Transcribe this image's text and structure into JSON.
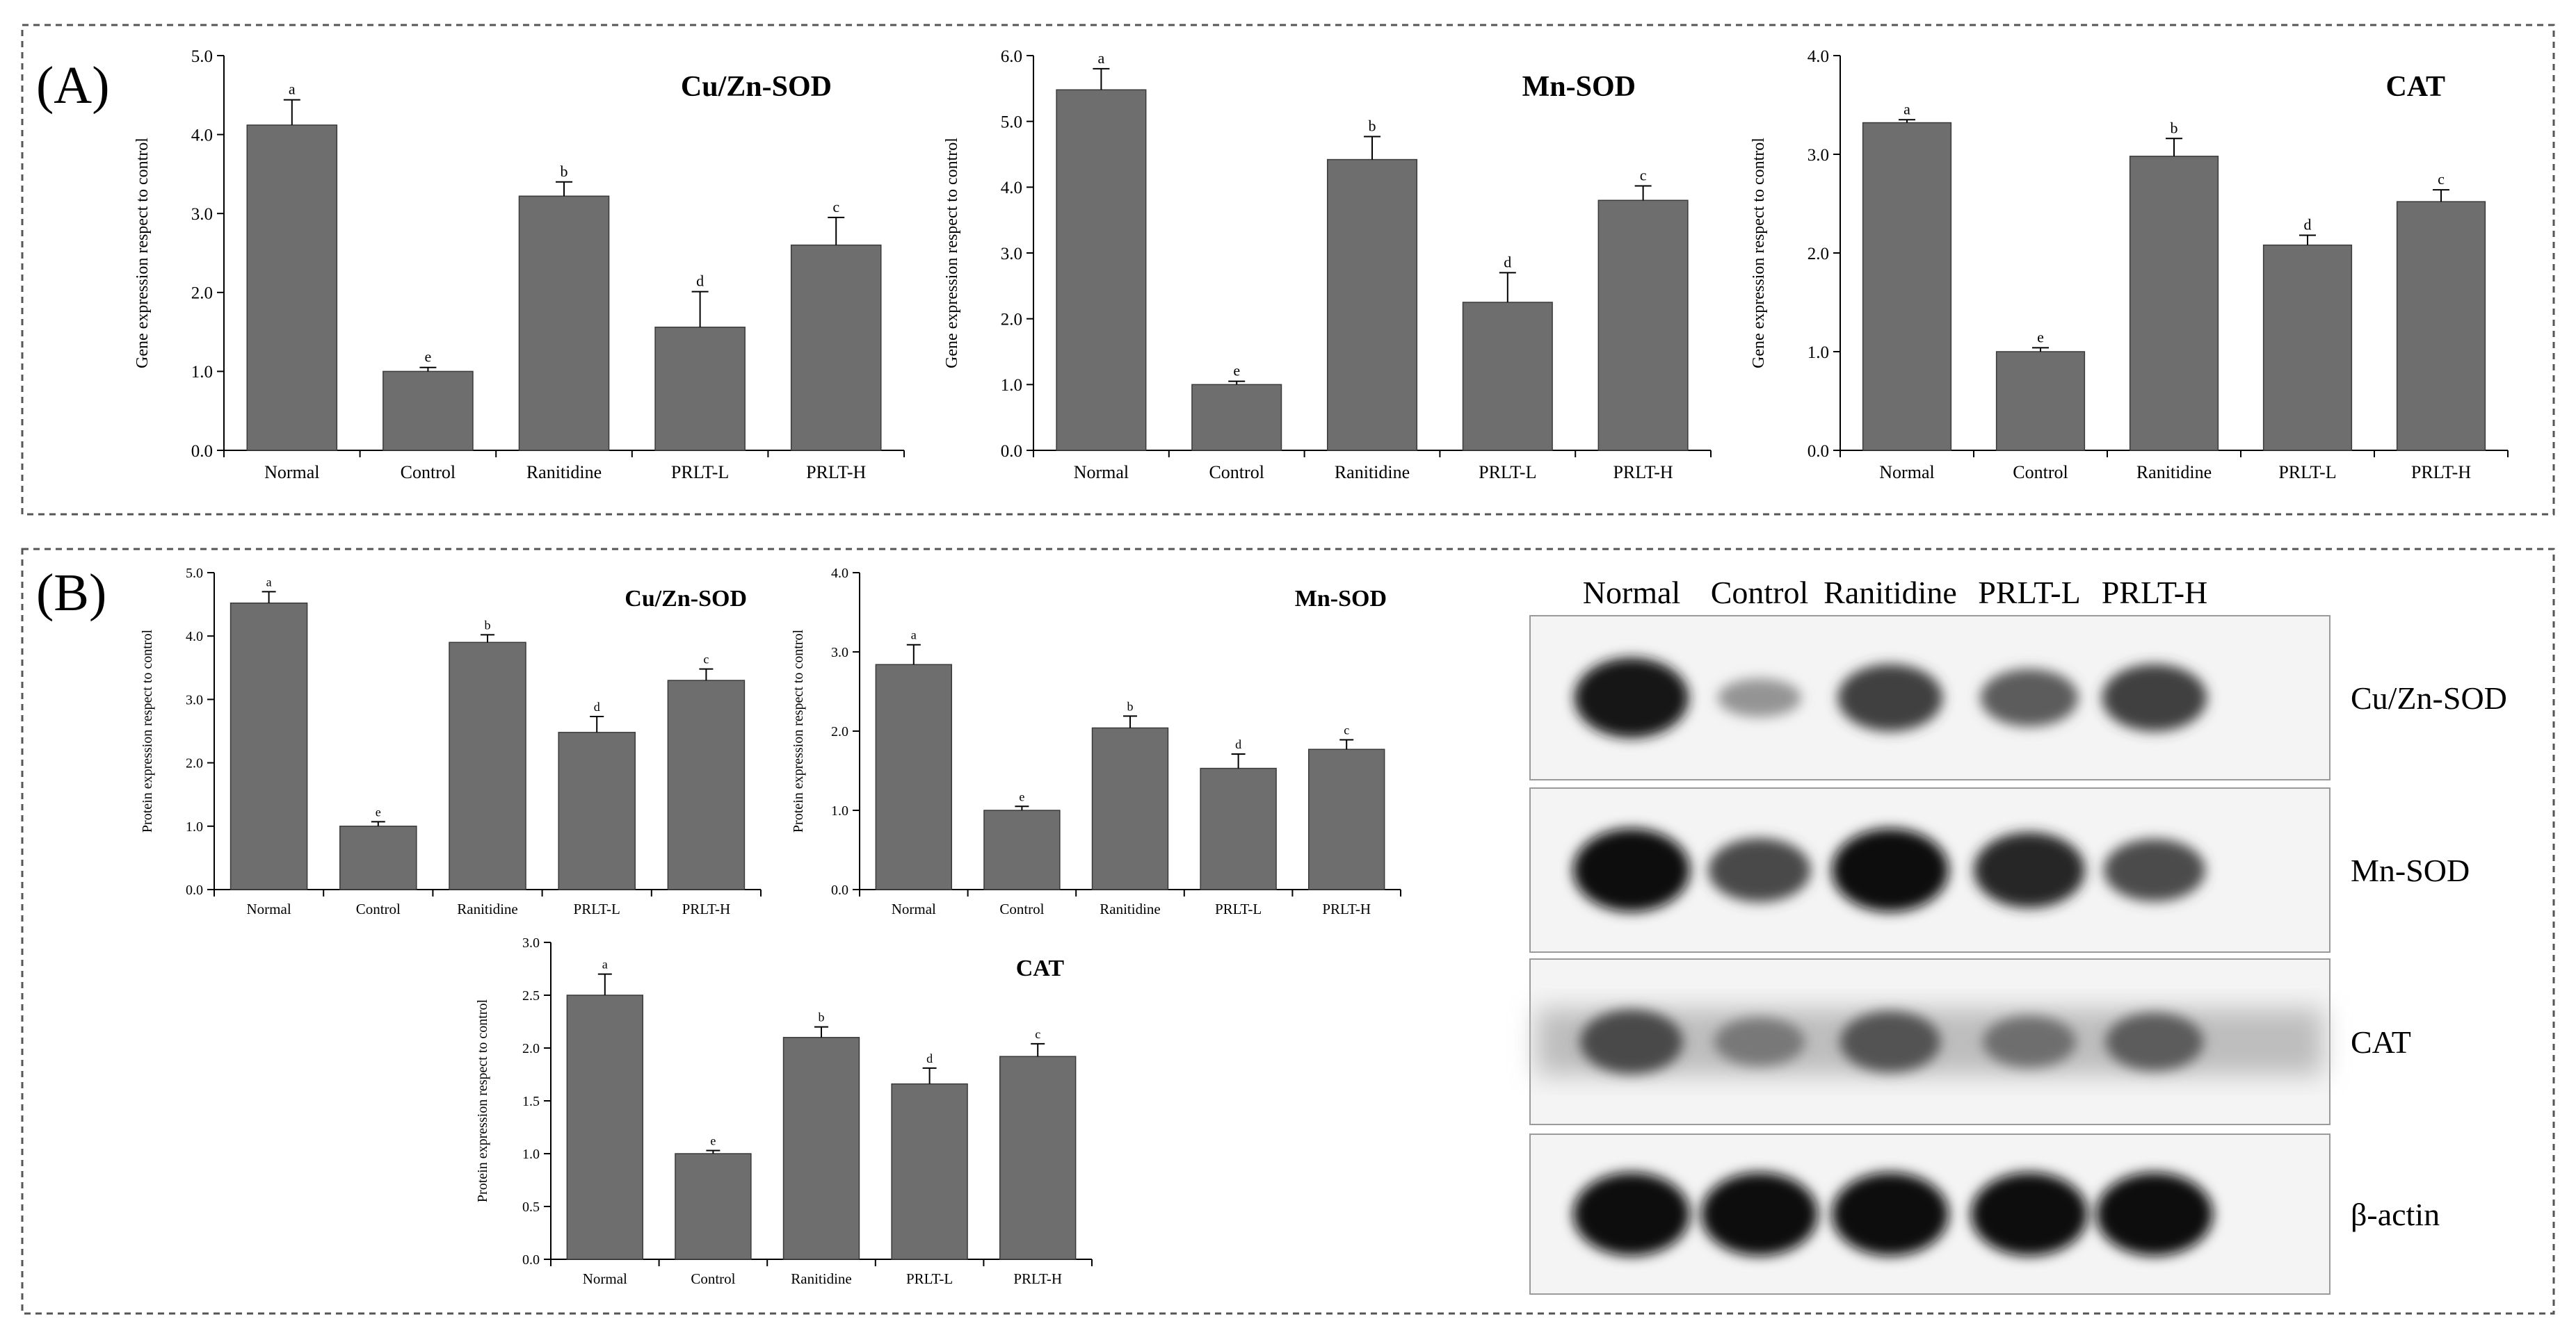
{
  "colors": {
    "bar": "#6e6e6e",
    "axis": "#000000",
    "panel_border": "#555555"
  },
  "panels": {
    "a": {
      "label": "(A)"
    },
    "b": {
      "label": "(B)"
    }
  },
  "blot": {
    "lanes": [
      "Normal",
      "Control",
      "Ranitidine",
      "PRLT-L",
      "PRLT-H"
    ],
    "rows": [
      {
        "label": "Cu/Zn-SOD",
        "intensity": [
          0.95,
          0.3,
          0.75,
          0.6,
          0.75
        ]
      },
      {
        "label": "Mn-SOD",
        "intensity": [
          1.0,
          0.7,
          1.0,
          0.88,
          0.68
        ]
      },
      {
        "label": "CAT",
        "intensity": [
          0.7,
          0.45,
          0.65,
          0.5,
          0.6
        ]
      },
      {
        "label": "β-actin",
        "intensity": [
          1.0,
          1.0,
          1.0,
          1.0,
          1.0
        ]
      }
    ]
  },
  "chart_data": [
    {
      "id": "a1",
      "type": "bar",
      "panel": "A",
      "title": "Cu/Zn-SOD",
      "ylabel": "Gene expression respect to control",
      "xlabel": "",
      "categories": [
        "Normal",
        "Control",
        "Ranitidine",
        "PRLT-L",
        "PRLT-H"
      ],
      "values": [
        4.12,
        1.0,
        3.22,
        1.56,
        2.6
      ],
      "errors": [
        0.32,
        0.05,
        0.18,
        0.45,
        0.35
      ],
      "letters": [
        "a",
        "e",
        "b",
        "d",
        "c"
      ],
      "ylim": [
        0,
        5
      ],
      "yticks": [
        "0.0",
        "1.0",
        "2.0",
        "3.0",
        "4.0",
        "5.0"
      ]
    },
    {
      "id": "a2",
      "type": "bar",
      "panel": "A",
      "title": "Mn-SOD",
      "ylabel": "Gene expression respect to control",
      "xlabel": "",
      "categories": [
        "Normal",
        "Control",
        "Ranitidine",
        "PRLT-L",
        "PRLT-H"
      ],
      "values": [
        5.48,
        1.0,
        4.42,
        2.25,
        3.8
      ],
      "errors": [
        0.32,
        0.05,
        0.35,
        0.45,
        0.22
      ],
      "letters": [
        "a",
        "e",
        "b",
        "d",
        "c"
      ],
      "ylim": [
        0,
        6
      ],
      "yticks": [
        "0.0",
        "1.0",
        "2.0",
        "3.0",
        "4.0",
        "5.0",
        "6.0"
      ]
    },
    {
      "id": "a3",
      "type": "bar",
      "panel": "A",
      "title": "CAT",
      "ylabel": "Gene expression respect to control",
      "xlabel": "",
      "categories": [
        "Normal",
        "Control",
        "Ranitidine",
        "PRLT-L",
        "PRLT-H"
      ],
      "values": [
        3.32,
        1.0,
        2.98,
        2.08,
        2.52
      ],
      "errors": [
        0.03,
        0.04,
        0.18,
        0.1,
        0.12
      ],
      "letters": [
        "a",
        "e",
        "b",
        "d",
        "c"
      ],
      "ylim": [
        0,
        4
      ],
      "yticks": [
        "0.0",
        "1.0",
        "2.0",
        "3.0",
        "4.0"
      ]
    },
    {
      "id": "b1",
      "type": "bar",
      "panel": "B",
      "title": "Cu/Zn-SOD",
      "ylabel": "Protein expression respect to control",
      "xlabel": "",
      "categories": [
        "Normal",
        "Control",
        "Ranitidine",
        "PRLT-L",
        "PRLT-H"
      ],
      "values": [
        4.52,
        1.0,
        3.9,
        2.48,
        3.3
      ],
      "errors": [
        0.18,
        0.07,
        0.12,
        0.25,
        0.18
      ],
      "letters": [
        "a",
        "e",
        "b",
        "d",
        "c"
      ],
      "ylim": [
        0,
        5
      ],
      "yticks": [
        "0.0",
        "1.0",
        "2.0",
        "3.0",
        "4.0",
        "5.0"
      ]
    },
    {
      "id": "b2",
      "type": "bar",
      "panel": "B",
      "title": "Mn-SOD",
      "ylabel": "Protein expression respect to control",
      "xlabel": "",
      "categories": [
        "Normal",
        "Control",
        "Ranitidine",
        "PRLT-L",
        "PRLT-H"
      ],
      "values": [
        2.84,
        1.0,
        2.04,
        1.53,
        1.77
      ],
      "errors": [
        0.25,
        0.05,
        0.15,
        0.18,
        0.12
      ],
      "letters": [
        "a",
        "e",
        "b",
        "d",
        "c"
      ],
      "ylim": [
        0,
        4
      ],
      "yticks": [
        "0.0",
        "1.0",
        "2.0",
        "3.0",
        "4.0"
      ]
    },
    {
      "id": "b3",
      "type": "bar",
      "panel": "B",
      "title": "CAT",
      "ylabel": "Protein expression respect to control",
      "xlabel": "",
      "categories": [
        "Normal",
        "Control",
        "Ranitidine",
        "PRLT-L",
        "PRLT-H"
      ],
      "values": [
        2.5,
        1.0,
        2.1,
        1.66,
        1.92
      ],
      "errors": [
        0.2,
        0.03,
        0.1,
        0.15,
        0.12
      ],
      "letters": [
        "a",
        "e",
        "b",
        "d",
        "c"
      ],
      "ylim": [
        0,
        3
      ],
      "yticks": [
        "0.0",
        "0.5",
        "1.0",
        "1.5",
        "2.0",
        "2.5",
        "3.0"
      ]
    }
  ]
}
